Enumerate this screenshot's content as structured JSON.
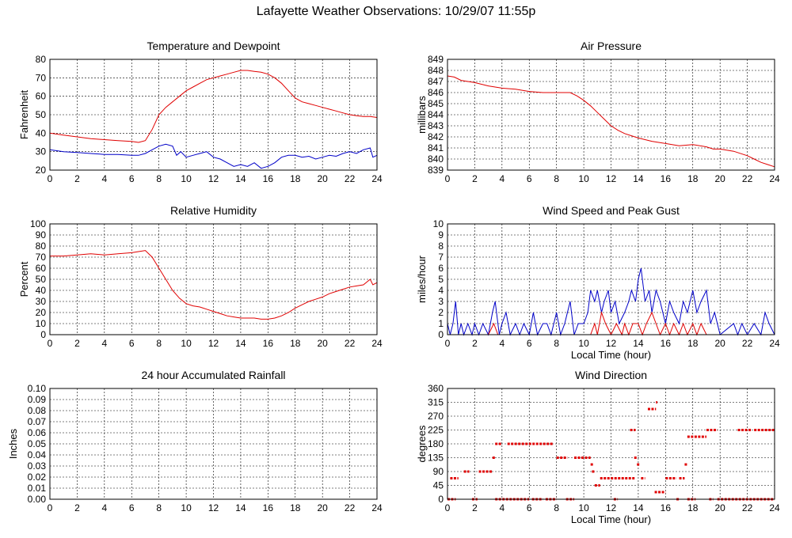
{
  "page": {
    "title": "Lafayette Weather Observations: 10/29/07 11:55p"
  },
  "colors": {
    "red": "#e00000",
    "blue": "#0000c8"
  },
  "chart_data": [
    {
      "id": "temp",
      "type": "line",
      "title": "Temperature and Dewpoint",
      "xlabel": "",
      "ylabel": "Fahrenheit",
      "xlim": [
        0,
        24
      ],
      "ylim": [
        20,
        80
      ],
      "xticks": [
        0,
        2,
        4,
        6,
        8,
        10,
        12,
        14,
        16,
        18,
        20,
        22,
        24
      ],
      "yticks": [
        20,
        30,
        40,
        50,
        60,
        70,
        80
      ],
      "series": [
        {
          "color": "#e00000",
          "x": [
            0,
            1,
            2,
            3,
            4,
            5,
            6,
            6.5,
            7,
            7.5,
            8,
            8.5,
            9,
            9.5,
            10,
            10.5,
            11,
            11.5,
            12,
            12.5,
            13,
            13.5,
            14,
            14.5,
            15,
            15.5,
            16,
            16.5,
            17,
            17.5,
            18,
            18.5,
            19,
            19.5,
            20,
            20.5,
            21,
            21.5,
            22,
            22.5,
            23,
            23.5,
            24
          ],
          "y": [
            40,
            39,
            38,
            37,
            36.5,
            36,
            35.5,
            35,
            36,
            42,
            50,
            54,
            57,
            60,
            63,
            65,
            67,
            69,
            70,
            71,
            72,
            73,
            74,
            74,
            73.5,
            73,
            72,
            70,
            67,
            63,
            59,
            57,
            56,
            55,
            54,
            53,
            52,
            51,
            50,
            49.5,
            49,
            49,
            48.5
          ]
        },
        {
          "color": "#0000c8",
          "x": [
            0,
            1,
            2,
            3,
            4,
            5,
            6,
            6.5,
            7,
            7.5,
            8,
            8.5,
            9,
            9.3,
            9.6,
            10,
            10.5,
            11,
            11.5,
            12,
            12.5,
            13,
            13.5,
            14,
            14.5,
            15,
            15.5,
            16,
            16.5,
            17,
            17.5,
            18,
            18.5,
            19,
            19.5,
            20,
            20.5,
            21,
            21.5,
            22,
            22.5,
            23,
            23.5,
            23.7,
            24
          ],
          "y": [
            31,
            30,
            29.5,
            29,
            28.5,
            28.5,
            28,
            28,
            29,
            31,
            33,
            34,
            33,
            28,
            30,
            27,
            28,
            29,
            30,
            27,
            26,
            24,
            22,
            23,
            22,
            24,
            21,
            22,
            24,
            27,
            28,
            28,
            27,
            27.5,
            26,
            27,
            28,
            27.5,
            29,
            30,
            29,
            31,
            32,
            27,
            28
          ]
        }
      ]
    },
    {
      "id": "pressure",
      "type": "line",
      "title": "Air Pressure",
      "xlabel": "",
      "ylabel": "millibars",
      "xlim": [
        0,
        24
      ],
      "ylim": [
        839,
        849
      ],
      "xticks": [
        0,
        2,
        4,
        6,
        8,
        10,
        12,
        14,
        16,
        18,
        20,
        22,
        24
      ],
      "yticks": [
        839,
        840,
        841,
        842,
        843,
        844,
        845,
        846,
        847,
        848,
        849
      ],
      "series": [
        {
          "color": "#e00000",
          "x": [
            0,
            0.5,
            1,
            2,
            3,
            4,
            5,
            6,
            7,
            8,
            9,
            9.5,
            10,
            10.5,
            11,
            11.5,
            12,
            12.5,
            13,
            13.5,
            14,
            15,
            16,
            17,
            18,
            19,
            19.5,
            20,
            21,
            22,
            22.5,
            23,
            23.5,
            24
          ],
          "y": [
            847.5,
            847.4,
            847.1,
            846.9,
            846.6,
            846.4,
            846.3,
            846.1,
            846,
            846,
            846,
            845.7,
            845.3,
            844.8,
            844.2,
            843.6,
            843,
            842.6,
            842.3,
            842.1,
            841.9,
            841.6,
            841.4,
            841.2,
            841.3,
            841.1,
            840.9,
            840.9,
            840.7,
            840.3,
            840,
            839.7,
            839.5,
            839.3
          ]
        }
      ]
    },
    {
      "id": "humidity",
      "type": "line",
      "title": "Relative Humidity",
      "xlabel": "",
      "ylabel": "Percent",
      "xlim": [
        0,
        24
      ],
      "ylim": [
        0,
        100
      ],
      "xticks": [
        0,
        2,
        4,
        6,
        8,
        10,
        12,
        14,
        16,
        18,
        20,
        22,
        24
      ],
      "yticks": [
        0,
        10,
        20,
        30,
        40,
        50,
        60,
        70,
        80,
        90,
        100
      ],
      "series": [
        {
          "color": "#e00000",
          "x": [
            0,
            1,
            2,
            3,
            4,
            5,
            6,
            6.5,
            7,
            7.5,
            8,
            8.5,
            9,
            9.5,
            10,
            10.5,
            11,
            11.5,
            12,
            12.5,
            13,
            13.5,
            14,
            14.5,
            15,
            15.5,
            16,
            16.5,
            17,
            17.5,
            18,
            18.5,
            19,
            19.5,
            20,
            20.5,
            21,
            21.5,
            22,
            22.5,
            23,
            23.5,
            23.7,
            24
          ],
          "y": [
            71,
            71,
            72,
            73,
            72,
            73,
            74,
            75,
            76,
            70,
            60,
            50,
            40,
            33,
            28,
            26,
            25,
            23,
            21,
            19,
            17,
            16,
            15,
            15,
            15,
            14,
            14,
            15,
            17,
            20,
            24,
            27,
            30,
            32,
            34,
            37,
            39,
            41,
            43,
            44,
            45,
            50,
            45,
            47
          ]
        }
      ]
    },
    {
      "id": "wind",
      "type": "line",
      "title": "Wind Speed and Peak Gust",
      "xlabel": "Local Time (hour)",
      "ylabel": "miles/hour",
      "xlim": [
        0,
        24
      ],
      "ylim": [
        0,
        10
      ],
      "xticks": [
        0,
        2,
        4,
        6,
        8,
        10,
        12,
        14,
        16,
        18,
        20,
        22,
        24
      ],
      "yticks": [
        0,
        1,
        2,
        3,
        4,
        5,
        6,
        7,
        8,
        9,
        10
      ],
      "series": [
        {
          "color": "#0000c8",
          "x": [
            0,
            0.2,
            0.4,
            0.6,
            0.8,
            1,
            1.2,
            1.5,
            1.8,
            2,
            2.3,
            2.6,
            3,
            3.3,
            3.5,
            3.8,
            4,
            4.3,
            4.6,
            5,
            5.3,
            5.6,
            6,
            6.3,
            6.6,
            7,
            7.3,
            7.6,
            8,
            8.3,
            8.6,
            9,
            9.3,
            9.6,
            10,
            10.3,
            10.5,
            10.8,
            11,
            11.3,
            11.5,
            11.8,
            12,
            12.3,
            12.6,
            13,
            13.3,
            13.5,
            13.8,
            14,
            14.2,
            14.5,
            14.8,
            15,
            15.3,
            15.6,
            16,
            16.3,
            16.6,
            17,
            17.3,
            17.6,
            18,
            18.3,
            18.6,
            19,
            19.3,
            19.6,
            20,
            21,
            21.3,
            21.6,
            22,
            22.5,
            23,
            23.3,
            23.6,
            24
          ],
          "y": [
            1,
            0,
            1,
            3,
            0,
            1,
            0,
            1,
            0,
            1,
            0,
            1,
            0,
            2,
            3,
            0,
            1,
            2,
            0,
            1,
            0,
            1,
            0,
            2,
            0,
            1,
            1,
            0,
            2,
            0,
            1,
            3,
            0,
            1,
            1,
            2,
            4,
            3,
            4,
            2,
            3,
            4,
            2,
            3,
            1,
            2,
            3,
            4,
            3,
            5,
            6,
            3,
            4,
            2,
            4,
            3,
            1,
            3,
            2,
            1,
            3,
            2,
            4,
            2,
            3,
            4,
            1,
            2,
            0,
            1,
            0,
            1,
            0,
            1,
            0,
            2,
            1,
            0
          ]
        },
        {
          "color": "#e00000",
          "x": [
            0,
            3,
            3.4,
            3.7,
            4,
            10.5,
            10.8,
            11,
            11.3,
            11.6,
            12,
            12.4,
            12.8,
            13,
            13.3,
            13.6,
            14,
            14.3,
            14.6,
            15,
            15.3,
            15.6,
            16,
            16.3,
            16.6,
            17,
            17.3,
            17.6,
            18,
            18.3,
            18.6,
            19,
            19.3,
            24
          ],
          "y": [
            0,
            0,
            1,
            0,
            0,
            0,
            1,
            0,
            2,
            1,
            0,
            1,
            0,
            1,
            0,
            1,
            1,
            0,
            1,
            2,
            1,
            0,
            1,
            0,
            1,
            0,
            1,
            0,
            1,
            0,
            1,
            0,
            0,
            0
          ]
        }
      ]
    },
    {
      "id": "rain",
      "type": "line",
      "title": "24 hour Accumulated Rainfall",
      "xlabel": "",
      "ylabel": "Inches",
      "xlim": [
        0,
        24
      ],
      "ylim": [
        0,
        0.1
      ],
      "xticks": [
        0,
        2,
        4,
        6,
        8,
        10,
        12,
        14,
        16,
        18,
        20,
        22,
        24
      ],
      "yticks": [
        0,
        0.01,
        0.02,
        0.03,
        0.04,
        0.05,
        0.06,
        0.07,
        0.08,
        0.09,
        0.1
      ],
      "ytick_labels": [
        "0.00",
        "0.01",
        "0.02",
        "0.03",
        "0.04",
        "0.05",
        "0.06",
        "0.07",
        "0.08",
        "0.09",
        "0.10"
      ],
      "series": [
        {
          "color": "#e00000",
          "x": [
            0,
            24
          ],
          "y": [
            0,
            0
          ]
        }
      ]
    },
    {
      "id": "direction",
      "type": "scatter",
      "title": "Wind Direction",
      "xlabel": "Local Time (hour)",
      "ylabel": "degrees",
      "xlim": [
        0,
        24
      ],
      "ylim": [
        0,
        360
      ],
      "xticks": [
        0,
        2,
        4,
        6,
        8,
        10,
        12,
        14,
        16,
        18,
        20,
        22,
        24
      ],
      "yticks": [
        0,
        45,
        90,
        135,
        180,
        225,
        270,
        315,
        360
      ],
      "series": [
        {
          "color": "#e00000",
          "runs": [
            [
              0,
              0.6,
              0
            ],
            [
              0.2,
              0.8,
              68
            ],
            [
              1.2,
              1.6,
              90
            ],
            [
              1.8,
              2.2,
              0
            ],
            [
              2.3,
              3.3,
              90
            ],
            [
              3.3,
              3.5,
              135
            ],
            [
              3.5,
              4.0,
              180
            ],
            [
              3.5,
              6.0,
              0
            ],
            [
              4.4,
              7.8,
              180
            ],
            [
              6.2,
              7.0,
              0
            ],
            [
              7.2,
              8.0,
              0
            ],
            [
              8.0,
              8.8,
              135
            ],
            [
              8.7,
              9.3,
              0
            ],
            [
              9.3,
              10.5,
              135
            ],
            [
              10.5,
              10.7,
              113
            ],
            [
              10.6,
              10.8,
              90
            ],
            [
              10.8,
              11.2,
              45
            ],
            [
              11.2,
              13.8,
              68
            ],
            [
              12.2,
              12.5,
              0
            ],
            [
              13.4,
              13.8,
              225
            ],
            [
              13.7,
              13.9,
              135
            ],
            [
              13.9,
              14.1,
              113
            ],
            [
              14.2,
              14.5,
              68
            ],
            [
              14.7,
              15.3,
              293
            ],
            [
              15.3,
              15.4,
              315
            ],
            [
              15.2,
              16.0,
              23
            ],
            [
              16.0,
              16.8,
              68
            ],
            [
              16.8,
              17.0,
              0
            ],
            [
              17.0,
              17.4,
              68
            ],
            [
              17.4,
              17.6,
              113
            ],
            [
              17.6,
              18.2,
              0
            ],
            [
              17.6,
              19.0,
              203
            ],
            [
              19.0,
              19.8,
              225
            ],
            [
              19.2,
              19.5,
              0
            ],
            [
              19.8,
              24.0,
              0
            ],
            [
              21.3,
              22.3,
              225
            ],
            [
              22.5,
              24.0,
              225
            ]
          ]
        }
      ]
    }
  ]
}
